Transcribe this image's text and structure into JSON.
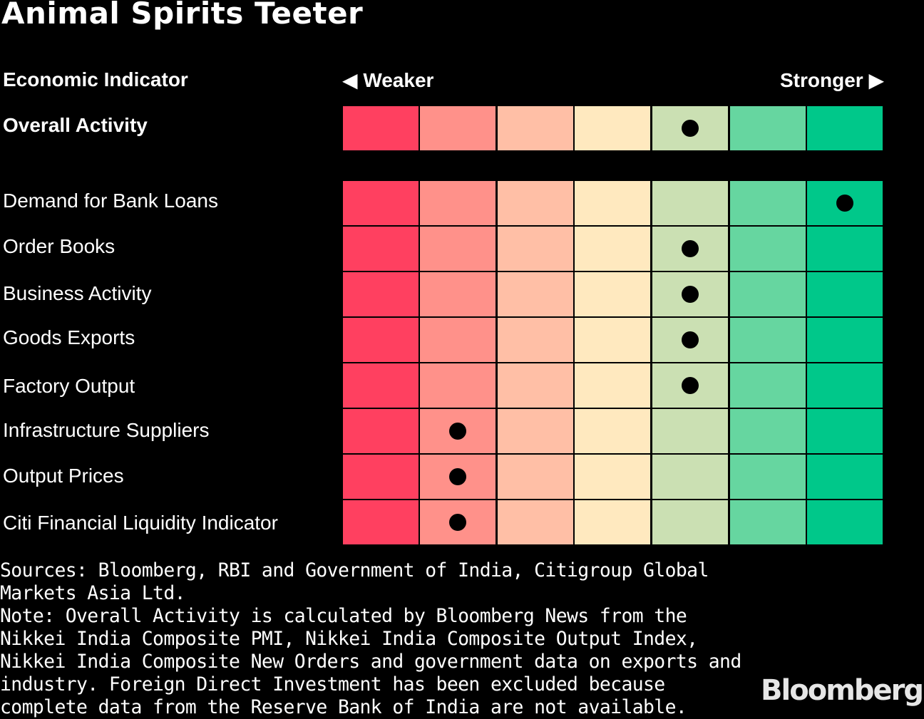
{
  "chart_data": {
    "type": "heatmap",
    "title": "Animal Spirits Teeter",
    "header": {
      "indicator": "Economic Indicator",
      "weaker": "◀ Weaker",
      "stronger": "Stronger ▶"
    },
    "scale_colors": [
      "#ff4060",
      "#ff918a",
      "#ffbfa6",
      "#ffe9bf",
      "#cbe0b3",
      "#66d6a0",
      "#00c88a"
    ],
    "rows": [
      {
        "label": "Overall Activity",
        "level": 5,
        "bold": true
      },
      {
        "label": "Demand for Bank Loans",
        "level": 7
      },
      {
        "label": "Order Books",
        "level": 5
      },
      {
        "label": "Business Activity",
        "level": 5
      },
      {
        "label": "Goods Exports",
        "level": 5
      },
      {
        "label": "Factory Output",
        "level": 5
      },
      {
        "label": "Infrastructure Suppliers",
        "level": 2
      },
      {
        "label": "Output Prices",
        "level": 2
      },
      {
        "label": "Citi Financial Liquidity Indicator",
        "level": 2
      }
    ],
    "scale_steps": 7
  },
  "footer": {
    "sources": "Sources: Bloomberg, RBI and Government of India, Citigroup Global Markets Asia Ltd.",
    "note": "Note: Overall Activity is calculated by Bloomberg News from the Nikkei India Composite PMI, Nikkei India Composite Output Index, Nikkei India Composite New Orders and government data on exports and industry. Foreign Direct Investment has been excluded because complete data from the Reserve Bank of India are not available."
  },
  "brand": "Bloomberg"
}
